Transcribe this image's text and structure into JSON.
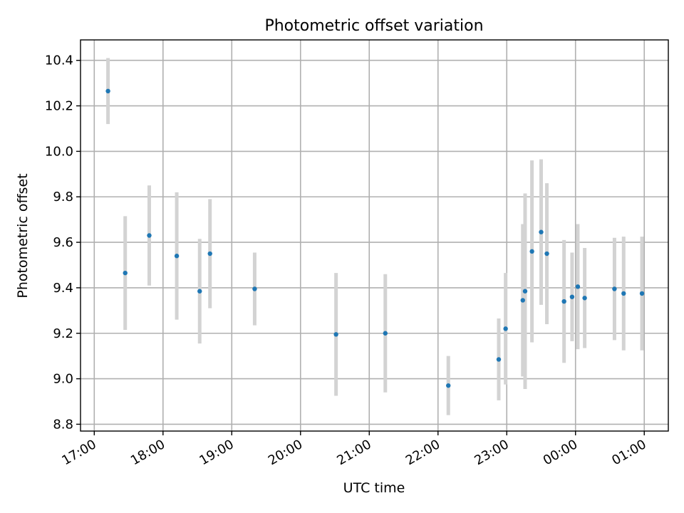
{
  "chart_data": {
    "type": "scatter",
    "title": "Photometric offset variation",
    "xlabel": "UTC time",
    "ylabel": "Photometric offset",
    "xlim_hours": [
      16.8,
      25.35
    ],
    "ylim": [
      8.77,
      10.49
    ],
    "grid": true,
    "colors": {
      "point": "#1f77b4",
      "errorbar": "#d3d3d3"
    },
    "x_ticks": [
      {
        "label": "17:00",
        "hour": 17
      },
      {
        "label": "18:00",
        "hour": 18
      },
      {
        "label": "19:00",
        "hour": 19
      },
      {
        "label": "20:00",
        "hour": 20
      },
      {
        "label": "21:00",
        "hour": 21
      },
      {
        "label": "22:00",
        "hour": 22
      },
      {
        "label": "23:00",
        "hour": 23
      },
      {
        "label": "00:00",
        "hour": 24
      },
      {
        "label": "01:00",
        "hour": 25
      }
    ],
    "y_ticks": [
      "8.8",
      "9.0",
      "9.2",
      "9.4",
      "9.6",
      "9.8",
      "10.0",
      "10.2",
      "10.4"
    ],
    "points": [
      {
        "x": "17:12",
        "y": 10.265,
        "err": 0.145
      },
      {
        "x": "17:27",
        "y": 9.465,
        "err": 0.25
      },
      {
        "x": "17:48",
        "y": 9.63,
        "err": 0.22
      },
      {
        "x": "18:12",
        "y": 9.54,
        "err": 0.28
      },
      {
        "x": "18:32",
        "y": 9.385,
        "err": 0.23
      },
      {
        "x": "18:41",
        "y": 9.55,
        "err": 0.24
      },
      {
        "x": "19:20",
        "y": 9.395,
        "err": 0.16
      },
      {
        "x": "20:31",
        "y": 9.195,
        "err": 0.27
      },
      {
        "x": "21:14",
        "y": 9.2,
        "err": 0.26
      },
      {
        "x": "22:09",
        "y": 8.97,
        "err": 0.13
      },
      {
        "x": "22:53",
        "y": 9.085,
        "err": 0.18
      },
      {
        "x": "22:59",
        "y": 9.22,
        "err": 0.245
      },
      {
        "x": "23:14",
        "y": 9.345,
        "err": 0.335
      },
      {
        "x": "23:16",
        "y": 9.385,
        "err": 0.43
      },
      {
        "x": "23:22",
        "y": 9.56,
        "err": 0.4
      },
      {
        "x": "23:30",
        "y": 9.645,
        "err": 0.32
      },
      {
        "x": "23:35",
        "y": 9.55,
        "err": 0.31
      },
      {
        "x": "23:50",
        "y": 9.34,
        "err": 0.27
      },
      {
        "x": "23:57",
        "y": 9.36,
        "err": 0.195
      },
      {
        "x": "00:02",
        "y": 9.405,
        "err": 0.275
      },
      {
        "x": "00:08",
        "y": 9.355,
        "err": 0.22
      },
      {
        "x": "00:34",
        "y": 9.395,
        "err": 0.225
      },
      {
        "x": "00:42",
        "y": 9.375,
        "err": 0.25
      },
      {
        "x": "00:58",
        "y": 9.375,
        "err": 0.25
      }
    ]
  }
}
